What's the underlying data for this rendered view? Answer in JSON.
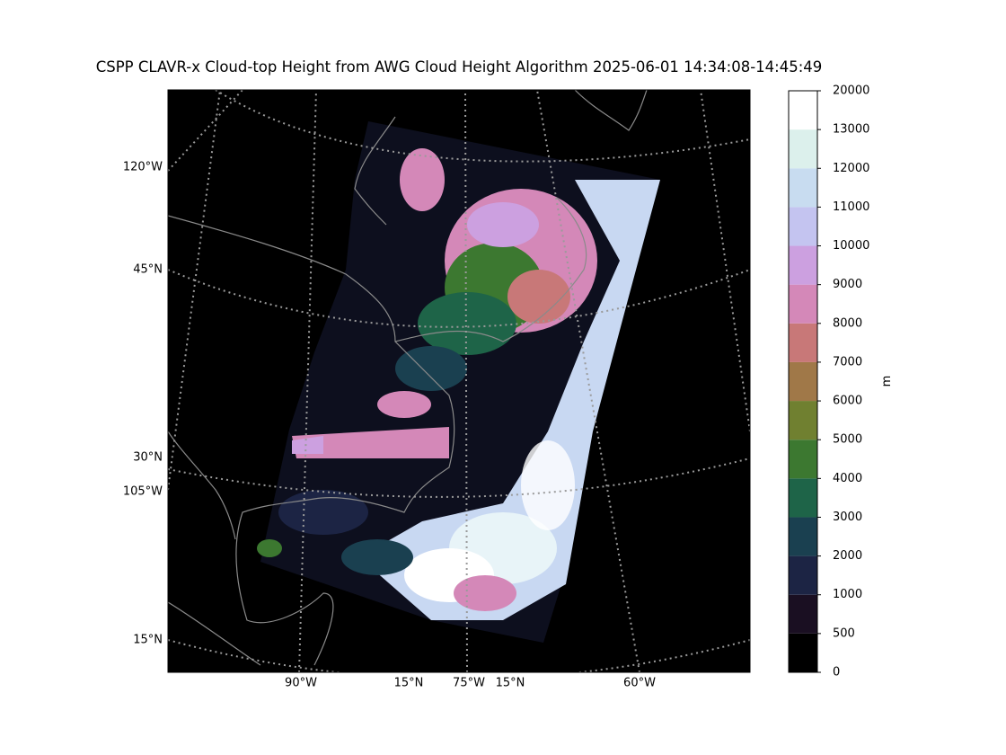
{
  "title": "CSPP CLAVR-x Cloud-top Height from AWG Cloud Height Algorithm 2025-06-01 14:34:08-14:45:49",
  "map_labels": {
    "left": [
      "120°W",
      "45°N",
      "30°N",
      "105°W",
      "15°N"
    ],
    "bottom": [
      "90°W",
      "15°N",
      "75°W",
      "15°N",
      "60°W"
    ]
  },
  "colorbar": {
    "label": "m",
    "levels": [
      0,
      500,
      1000,
      2000,
      3000,
      4000,
      5000,
      6000,
      7000,
      8000,
      9000,
      10000,
      11000,
      12000,
      13000,
      20000
    ],
    "colors": [
      "#000000",
      "#1a0f22",
      "#1c2444",
      "#1a4050",
      "#1e6448",
      "#3c7830",
      "#708030",
      "#a07848",
      "#c87878",
      "#d488b8",
      "#cca0e0",
      "#c4c4f0",
      "#c8dcf0",
      "#dcf0ec",
      "#ffffff"
    ]
  }
}
